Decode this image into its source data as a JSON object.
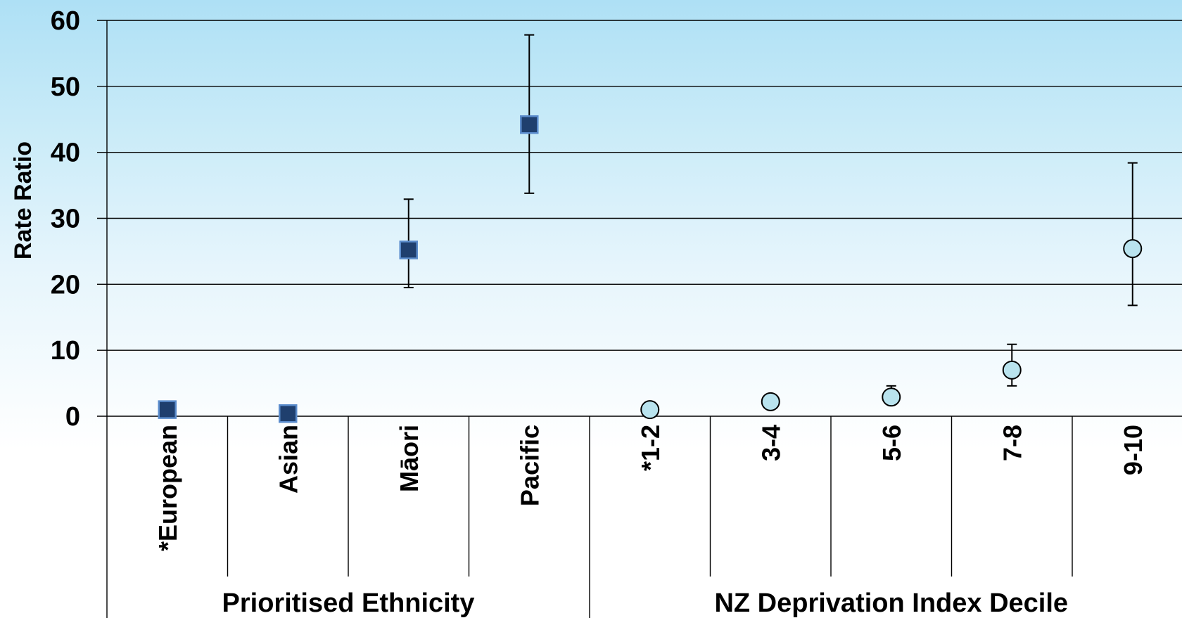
{
  "chart_data": {
    "type": "scatter",
    "title": "",
    "ylabel": "Rate Ratio",
    "ylim": [
      0,
      60
    ],
    "yticks": [
      0,
      10,
      20,
      30,
      40,
      50,
      60
    ],
    "grid": true,
    "groups": [
      {
        "label": "Prioritised Ethnicity",
        "marker": "square",
        "color": "#1f3f6e",
        "edge_color": "#5b8ccc",
        "categories": [
          "*European",
          "Asian",
          "Māori",
          "Pacific"
        ],
        "values": [
          1.0,
          0.4,
          25.2,
          44.2
        ],
        "lower": [
          null,
          null,
          19.5,
          33.8
        ],
        "upper": [
          null,
          null,
          32.9,
          57.8
        ]
      },
      {
        "label": "NZ Deprivation Index Decile",
        "marker": "circle",
        "color": "#b9e3ee",
        "edge_color": "#000000",
        "categories": [
          "*1-2",
          "3-4",
          "5-6",
          "7-8",
          "9-10"
        ],
        "values": [
          1.0,
          2.2,
          2.9,
          7.0,
          25.4
        ],
        "lower": [
          null,
          1.4,
          2.1,
          4.6,
          16.8
        ],
        "upper": [
          null,
          3.3,
          4.6,
          10.9,
          38.4
        ]
      }
    ]
  }
}
